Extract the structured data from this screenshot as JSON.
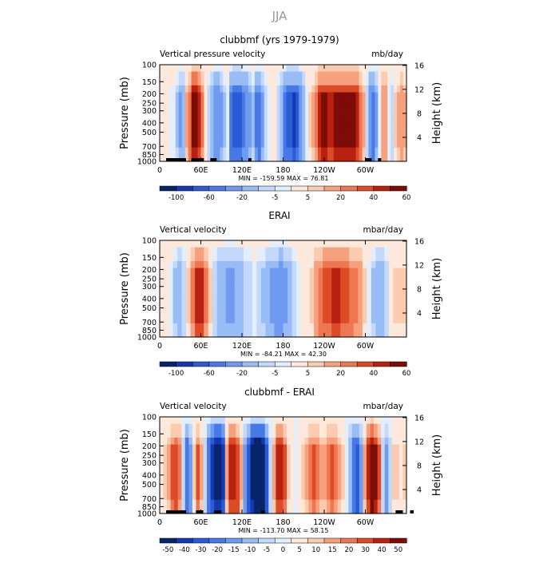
{
  "figure": {
    "title": "JJA"
  },
  "chart_data": [
    {
      "type": "heatmap",
      "title": "clubbmf (yrs 1979-1979)",
      "left_label": "Vertical pressure velocity",
      "right_label": "mb/day",
      "ylabel": "Pressure (mb)",
      "ylabel_right": "Height (km)",
      "pressure_ticks": [
        "100",
        "150",
        "200",
        "250",
        "300",
        "400",
        "500",
        "700",
        "850",
        "1000"
      ],
      "height_ticks": [
        "4",
        "8",
        "12",
        "16"
      ],
      "x_ticks": [
        "0",
        "60E",
        "120E",
        "180",
        "120W",
        "60W"
      ],
      "stats": {
        "min_label": "MIN =",
        "min": "-159.59",
        "max_label": "MAX =",
        "max": "76.81"
      },
      "colorbar": {
        "levels": [
          "-100",
          "-60",
          "-20",
          "-5",
          "5",
          "20",
          "40",
          "60"
        ],
        "colors": [
          "#08246b",
          "#1238b4",
          "#2a5ad6",
          "#4878e6",
          "#6e9bf0",
          "#98bcf6",
          "#c3d8fa",
          "#e3eefd",
          "#fde8dc",
          "#fbcbb0",
          "#f6a07e",
          "#ee7650",
          "#dc4a26",
          "#b82010",
          "#7e0c06"
        ]
      },
      "columns": [
        -3,
        -3,
        -5,
        -10,
        -10,
        -25,
        -45,
        -35,
        10,
        25,
        60,
        60,
        45,
        20,
        0,
        -15,
        -30,
        -60,
        -60,
        -50,
        -25,
        -10,
        -80,
        -90,
        -100,
        -90,
        -75,
        -60,
        -50,
        -25,
        -70,
        -80,
        -50,
        -20,
        -10,
        -5,
        -5,
        -20,
        -40,
        -80,
        -100,
        -100,
        -110,
        -90,
        -60,
        -30,
        -10,
        5,
        10,
        20,
        45,
        55,
        50,
        45,
        45,
        50,
        50,
        50,
        55,
        55,
        55,
        50,
        45,
        25,
        10,
        -20,
        -60,
        -80,
        -50,
        -10,
        15,
        15,
        -10,
        -20,
        5,
        10,
        15,
        10
      ],
      "bottom_bars": [
        [
          -5,
          -4
        ],
        [
          10,
          14
        ],
        [
          16,
          18
        ],
        [
          28,
          29
        ],
        [
          65,
          67
        ],
        [
          69,
          70
        ]
      ]
    },
    {
      "type": "heatmap",
      "title": "ERAI",
      "left_label": "Vertical velocity",
      "right_label": "mbar/day",
      "ylabel": "Pressure (mb)",
      "ylabel_right": "Height (km)",
      "pressure_ticks": [
        "100",
        "150",
        "200",
        "250",
        "300",
        "400",
        "500",
        "700",
        "850",
        "1000"
      ],
      "height_ticks": [
        "4",
        "8",
        "12",
        "16"
      ],
      "x_ticks": [
        "0",
        "60E",
        "120E",
        "180",
        "120W",
        "60W"
      ],
      "stats": {
        "min_label": "MIN =",
        "min": "-84.21",
        "max_label": "MAX =",
        "max": "42.30"
      },
      "colorbar": {
        "levels": [
          "-100",
          "-60",
          "-20",
          "-5",
          "5",
          "20",
          "40",
          "60"
        ],
        "colors": [
          "#08246b",
          "#1238b4",
          "#2a5ad6",
          "#4878e6",
          "#6e9bf0",
          "#98bcf6",
          "#c3d8fa",
          "#e3eefd",
          "#fde8dc",
          "#fbcbb0",
          "#f6a07e",
          "#ee7650",
          "#dc4a26",
          "#b82010",
          "#7e0c06"
        ]
      },
      "columns": [
        -3,
        -5,
        -10,
        -25,
        -35,
        -20,
        5,
        20,
        40,
        40,
        20,
        5,
        -15,
        -30,
        -40,
        -45,
        -45,
        -40,
        -30,
        -20,
        -15,
        -10,
        -15,
        -25,
        -35,
        -45,
        -55,
        -60,
        -50,
        -35,
        -20,
        -10,
        -5,
        0,
        5,
        15,
        25,
        30,
        35,
        40,
        40,
        35,
        30,
        25,
        20,
        15,
        5,
        -10,
        -25,
        -40,
        -35,
        -15,
        0,
        5,
        5,
        5
      ],
      "bottom_bars": []
    },
    {
      "type": "heatmap",
      "title": "clubbmf - ERAI",
      "left_label": "Vertical velocity",
      "right_label": "mbar/day",
      "ylabel": "Pressure (mb)",
      "ylabel_right": "Height (km)",
      "pressure_ticks": [
        "100",
        "150",
        "200",
        "250",
        "300",
        "400",
        "500",
        "700",
        "850",
        "1000"
      ],
      "height_ticks": [
        "4",
        "8",
        "12",
        "16"
      ],
      "x_ticks": [
        "0",
        "60E",
        "120E",
        "180",
        "120W",
        "60W"
      ],
      "stats": {
        "min_label": "MIN =",
        "min": "-113.70",
        "max_label": "MAX =",
        "max": "58.15"
      },
      "colorbar": {
        "levels": [
          "-50",
          "-40",
          "-30",
          "-20",
          "-15",
          "-10",
          "-5",
          "0",
          "5",
          "10",
          "15",
          "20",
          "30",
          "40",
          "50"
        ],
        "colors": [
          "#08246b",
          "#1238b4",
          "#2a5ad6",
          "#4878e6",
          "#6e9bf0",
          "#98bcf6",
          "#c3d8fa",
          "#e3eefd",
          "#fde8dc",
          "#fbcbb0",
          "#f6a07e",
          "#ee7650",
          "#dc4a26",
          "#b82010",
          "#7e0c06"
        ]
      },
      "columns": [
        0,
        5,
        10,
        20,
        25,
        15,
        -10,
        -30,
        -20,
        5,
        20,
        10,
        -10,
        -30,
        -50,
        -60,
        -60,
        -50,
        10,
        30,
        35,
        25,
        10,
        -20,
        -40,
        -60,
        -80,
        -80,
        -70,
        -40,
        -10,
        10,
        30,
        35,
        20,
        5,
        0,
        -5,
        0,
        5,
        10,
        15,
        20,
        15,
        10,
        10,
        15,
        20,
        15,
        10,
        5,
        -5,
        -15,
        -30,
        -40,
        -20,
        10,
        30,
        50,
        40,
        20,
        -10,
        -20,
        -10,
        5,
        5,
        0,
        5
      ],
      "bottom_bars": [
        [
          -5,
          -4
        ],
        [
          10,
          12
        ],
        [
          15,
          17
        ],
        [
          28,
          29
        ],
        [
          65,
          67
        ],
        [
          69,
          70
        ]
      ]
    }
  ]
}
